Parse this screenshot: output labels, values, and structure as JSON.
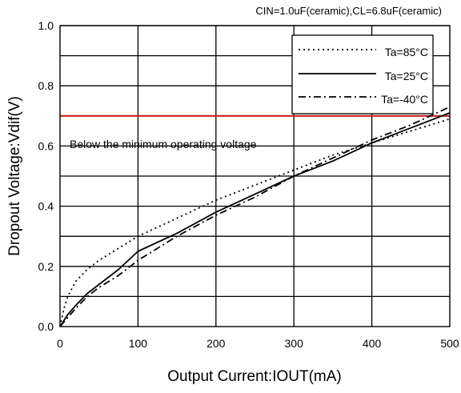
{
  "chart_data": {
    "type": "line",
    "title": "",
    "subtitle": "CIN=1.0uF(ceramic),CL=6.8uF(ceramic)",
    "xlabel": "Output Current:IOUT(mA)",
    "ylabel": "Dropout Voltage:Vdif(V)",
    "xlim": [
      0,
      500
    ],
    "ylim": [
      0,
      1.0
    ],
    "x_ticks": [
      0,
      100,
      200,
      300,
      400,
      500
    ],
    "y_ticks": [
      0.0,
      0.2,
      0.4,
      0.6,
      0.8,
      1.0
    ],
    "x_tick_labels": [
      "0",
      "100",
      "200",
      "300",
      "400",
      "500"
    ],
    "y_tick_labels": [
      "0.0",
      "0.2",
      "0.4",
      "0.6",
      "0.8",
      "1.0"
    ],
    "grid": true,
    "legend_position": "top-right",
    "series": [
      {
        "name": "Ta=85°C",
        "style": "dotted",
        "color": "#000000",
        "x": [
          0,
          5,
          10,
          20,
          35,
          50,
          75,
          100,
          150,
          200,
          250,
          300,
          350,
          400,
          450,
          500
        ],
        "y": [
          0.0,
          0.06,
          0.1,
          0.15,
          0.19,
          0.22,
          0.26,
          0.3,
          0.36,
          0.42,
          0.47,
          0.52,
          0.57,
          0.61,
          0.65,
          0.69
        ]
      },
      {
        "name": "Ta=25°C",
        "style": "solid",
        "color": "#000000",
        "x": [
          0,
          10,
          20,
          35,
          50,
          75,
          100,
          150,
          200,
          250,
          300,
          350,
          400,
          450,
          500
        ],
        "y": [
          0.0,
          0.04,
          0.07,
          0.11,
          0.14,
          0.19,
          0.25,
          0.31,
          0.38,
          0.44,
          0.5,
          0.55,
          0.61,
          0.66,
          0.71
        ]
      },
      {
        "name": "Ta=-40°C",
        "style": "dashdot",
        "color": "#000000",
        "x": [
          0,
          10,
          20,
          35,
          50,
          75,
          100,
          150,
          200,
          250,
          300,
          350,
          400,
          450,
          500
        ],
        "y": [
          0.0,
          0.03,
          0.06,
          0.1,
          0.13,
          0.17,
          0.22,
          0.3,
          0.37,
          0.43,
          0.5,
          0.56,
          0.62,
          0.67,
          0.73
        ]
      }
    ],
    "reference_line": {
      "y": 0.7,
      "color": "#cc2222",
      "label": "Below the minimum operating voltage"
    }
  }
}
